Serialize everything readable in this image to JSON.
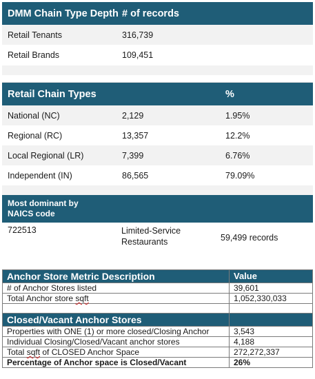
{
  "table1": {
    "header": {
      "col1": "DMM Chain Type Depth",
      "col2": "# of records"
    },
    "rows": [
      {
        "label": "Retail Tenants",
        "value": "316,739"
      },
      {
        "label": "Retail Brands",
        "value": "109,451"
      }
    ],
    "types_header": {
      "col1": "Retail Chain Types",
      "col3": "%"
    },
    "types": [
      {
        "label": "National (NC)",
        "count": "2,129",
        "pct": "1.95%"
      },
      {
        "label": "Regional (RC)",
        "count": "13,357",
        "pct": "12.2%"
      },
      {
        "label": "Local Regional (LR)",
        "count": "7,399",
        "pct": "6.76%"
      },
      {
        "label": "Independent (IN)",
        "count": "86,565",
        "pct": "79.09%"
      }
    ],
    "naics_header": "Most dominant by NAICS code",
    "naics": {
      "code": "722513",
      "name": "Limited-Service Restaurants",
      "records": "59,499 records"
    }
  },
  "table2": {
    "header": {
      "col1": "Anchor Store Metric Description",
      "col2": "Value"
    },
    "rows": [
      {
        "label": "# of Anchor Stores listed",
        "value": "39,601"
      },
      {
        "label_pre": "Total Anchor store ",
        "label_squig": "sqft",
        "value": "1,052,330,033"
      }
    ],
    "closed_header": "Closed/Vacant Anchor Stores",
    "closed_rows": [
      {
        "label": "Properties with ONE (1) or more closed/Closing Anchor",
        "value": "3,543"
      },
      {
        "label": "Individual Closing/Closed/Vacant anchor stores",
        "value": "4,188"
      },
      {
        "label_pre": "Total ",
        "label_squig": "sqft",
        "label_post": " of CLOSED Anchor Space",
        "value": "272,272,337"
      },
      {
        "label": "Percentage of Anchor space is Closed/Vacant",
        "value": "26%"
      }
    ]
  }
}
